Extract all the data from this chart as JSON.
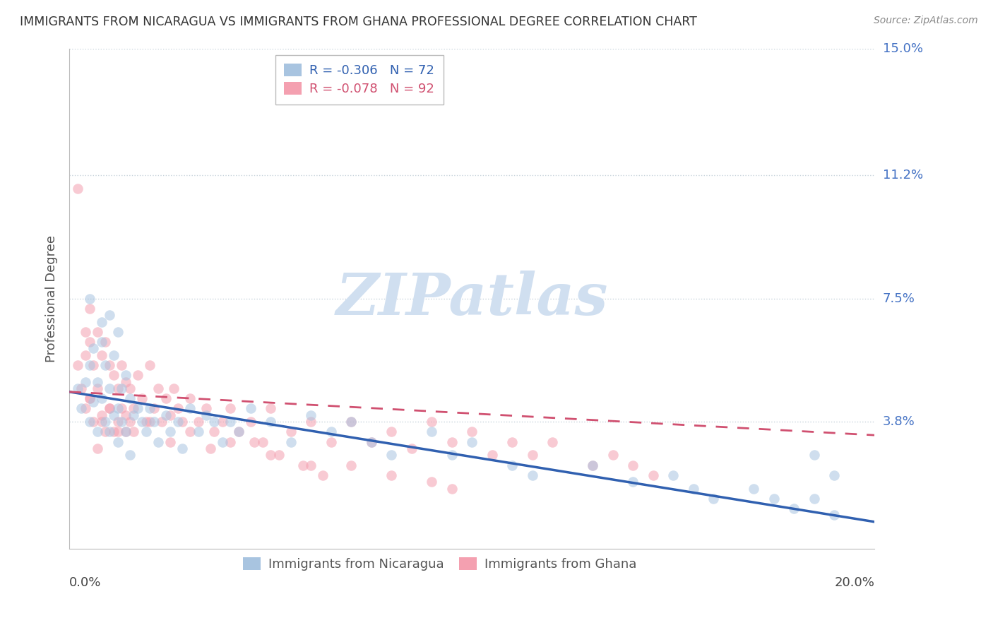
{
  "title": "IMMIGRANTS FROM NICARAGUA VS IMMIGRANTS FROM GHANA PROFESSIONAL DEGREE CORRELATION CHART",
  "source": "Source: ZipAtlas.com",
  "ylabel": "Professional Degree",
  "xlim": [
    0.0,
    0.2
  ],
  "ylim": [
    0.0,
    0.15
  ],
  "ytick_labels": [
    "3.8%",
    "7.5%",
    "11.2%",
    "15.0%"
  ],
  "ytick_positions": [
    0.038,
    0.075,
    0.112,
    0.15
  ],
  "nicaragua_R": -0.306,
  "nicaragua_N": 72,
  "ghana_R": -0.078,
  "ghana_N": 92,
  "nicaragua_color": "#a8c4e0",
  "ghana_color": "#f4a0b0",
  "nicaragua_line_color": "#3060b0",
  "ghana_line_color": "#d05070",
  "watermark_color": "#d0dff0",
  "background_color": "#ffffff",
  "grid_color": "#c8d4dc",
  "title_color": "#333333",
  "right_axis_label_color": "#4472c4",
  "scatter_alpha": 0.55,
  "scatter_size": 110,
  "nicaragua_x": [
    0.002,
    0.003,
    0.004,
    0.005,
    0.005,
    0.006,
    0.006,
    0.007,
    0.007,
    0.008,
    0.008,
    0.009,
    0.009,
    0.01,
    0.01,
    0.011,
    0.011,
    0.012,
    0.012,
    0.013,
    0.013,
    0.014,
    0.014,
    0.015,
    0.015,
    0.016,
    0.017,
    0.018,
    0.019,
    0.02,
    0.021,
    0.022,
    0.024,
    0.025,
    0.027,
    0.028,
    0.03,
    0.032,
    0.034,
    0.036,
    0.038,
    0.04,
    0.042,
    0.045,
    0.05,
    0.055,
    0.06,
    0.065,
    0.07,
    0.075,
    0.08,
    0.09,
    0.095,
    0.1,
    0.11,
    0.115,
    0.13,
    0.14,
    0.15,
    0.155,
    0.16,
    0.17,
    0.175,
    0.18,
    0.185,
    0.19,
    0.005,
    0.008,
    0.01,
    0.012,
    0.185,
    0.19
  ],
  "nicaragua_y": [
    0.048,
    0.042,
    0.05,
    0.055,
    0.038,
    0.044,
    0.06,
    0.05,
    0.035,
    0.045,
    0.062,
    0.038,
    0.055,
    0.048,
    0.035,
    0.04,
    0.058,
    0.042,
    0.032,
    0.048,
    0.038,
    0.052,
    0.035,
    0.045,
    0.028,
    0.04,
    0.042,
    0.038,
    0.035,
    0.042,
    0.038,
    0.032,
    0.04,
    0.035,
    0.038,
    0.03,
    0.042,
    0.035,
    0.04,
    0.038,
    0.032,
    0.038,
    0.035,
    0.042,
    0.038,
    0.032,
    0.04,
    0.035,
    0.038,
    0.032,
    0.028,
    0.035,
    0.028,
    0.032,
    0.025,
    0.022,
    0.025,
    0.02,
    0.022,
    0.018,
    0.015,
    0.018,
    0.015,
    0.012,
    0.015,
    0.01,
    0.075,
    0.068,
    0.07,
    0.065,
    0.028,
    0.022
  ],
  "ghana_x": [
    0.002,
    0.003,
    0.004,
    0.004,
    0.005,
    0.005,
    0.005,
    0.006,
    0.006,
    0.007,
    0.007,
    0.007,
    0.008,
    0.008,
    0.009,
    0.009,
    0.01,
    0.01,
    0.011,
    0.011,
    0.012,
    0.012,
    0.013,
    0.013,
    0.014,
    0.014,
    0.015,
    0.015,
    0.016,
    0.017,
    0.018,
    0.019,
    0.02,
    0.021,
    0.022,
    0.023,
    0.024,
    0.025,
    0.026,
    0.027,
    0.028,
    0.03,
    0.032,
    0.034,
    0.036,
    0.038,
    0.04,
    0.042,
    0.045,
    0.048,
    0.05,
    0.055,
    0.06,
    0.065,
    0.07,
    0.075,
    0.08,
    0.085,
    0.09,
    0.095,
    0.1,
    0.105,
    0.11,
    0.115,
    0.12,
    0.13,
    0.135,
    0.14,
    0.145,
    0.005,
    0.008,
    0.01,
    0.012,
    0.014,
    0.016,
    0.02,
    0.025,
    0.03,
    0.035,
    0.04,
    0.05,
    0.06,
    0.07,
    0.08,
    0.09,
    0.095,
    0.046,
    0.052,
    0.058,
    0.063,
    0.002,
    0.004
  ],
  "ghana_y": [
    0.055,
    0.048,
    0.058,
    0.042,
    0.062,
    0.045,
    0.072,
    0.055,
    0.038,
    0.065,
    0.048,
    0.03,
    0.058,
    0.04,
    0.062,
    0.035,
    0.055,
    0.042,
    0.052,
    0.035,
    0.048,
    0.038,
    0.055,
    0.042,
    0.05,
    0.035,
    0.048,
    0.038,
    0.042,
    0.052,
    0.045,
    0.038,
    0.055,
    0.042,
    0.048,
    0.038,
    0.045,
    0.04,
    0.048,
    0.042,
    0.038,
    0.045,
    0.038,
    0.042,
    0.035,
    0.038,
    0.042,
    0.035,
    0.038,
    0.032,
    0.042,
    0.035,
    0.038,
    0.032,
    0.038,
    0.032,
    0.035,
    0.03,
    0.038,
    0.032,
    0.035,
    0.028,
    0.032,
    0.028,
    0.032,
    0.025,
    0.028,
    0.025,
    0.022,
    0.045,
    0.038,
    0.042,
    0.035,
    0.04,
    0.035,
    0.038,
    0.032,
    0.035,
    0.03,
    0.032,
    0.028,
    0.025,
    0.025,
    0.022,
    0.02,
    0.018,
    0.032,
    0.028,
    0.025,
    0.022,
    0.108,
    0.065
  ]
}
